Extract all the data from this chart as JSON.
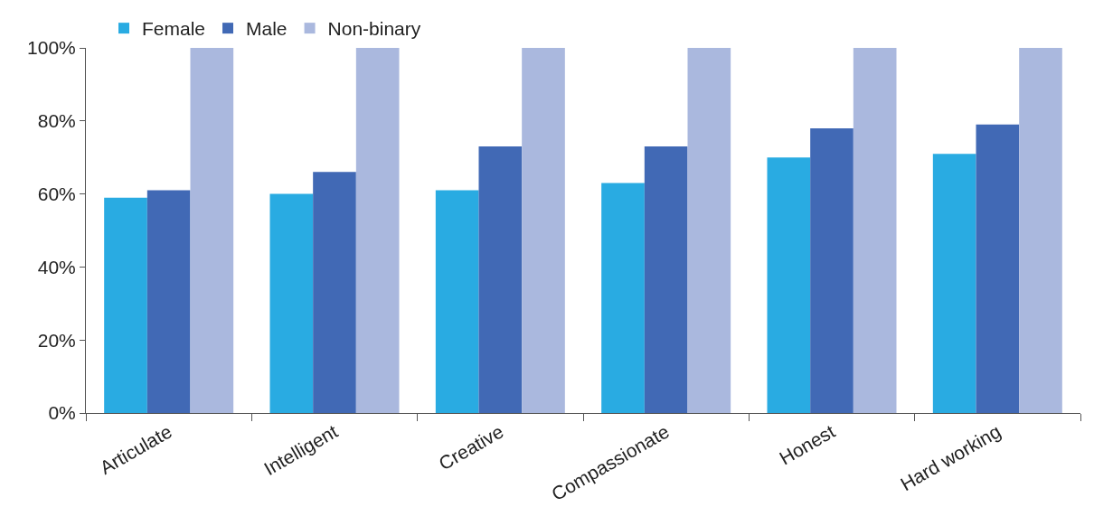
{
  "chart_data": {
    "type": "bar",
    "categories": [
      "Articulate",
      "Intelligent",
      "Creative",
      "Compassionate",
      "Honest",
      "Hard working"
    ],
    "series": [
      {
        "name": "Female",
        "color": "#29abe2",
        "values": [
          59,
          60,
          61,
          63,
          70,
          71
        ]
      },
      {
        "name": "Male",
        "color": "#4169b5",
        "values": [
          61,
          66,
          73,
          73,
          78,
          79
        ]
      },
      {
        "name": "Non-binary",
        "color": "#aab8de",
        "values": [
          100,
          100,
          100,
          100,
          100,
          100
        ]
      }
    ],
    "ylim": [
      0,
      100
    ],
    "yticks": [
      {
        "value": 0,
        "label": "0%"
      },
      {
        "value": 20,
        "label": "20%"
      },
      {
        "value": 40,
        "label": "40%"
      },
      {
        "value": 60,
        "label": "60%"
      },
      {
        "value": 80,
        "label": "80%"
      },
      {
        "value": 100,
        "label": "100%"
      }
    ],
    "legend": "top left"
  }
}
